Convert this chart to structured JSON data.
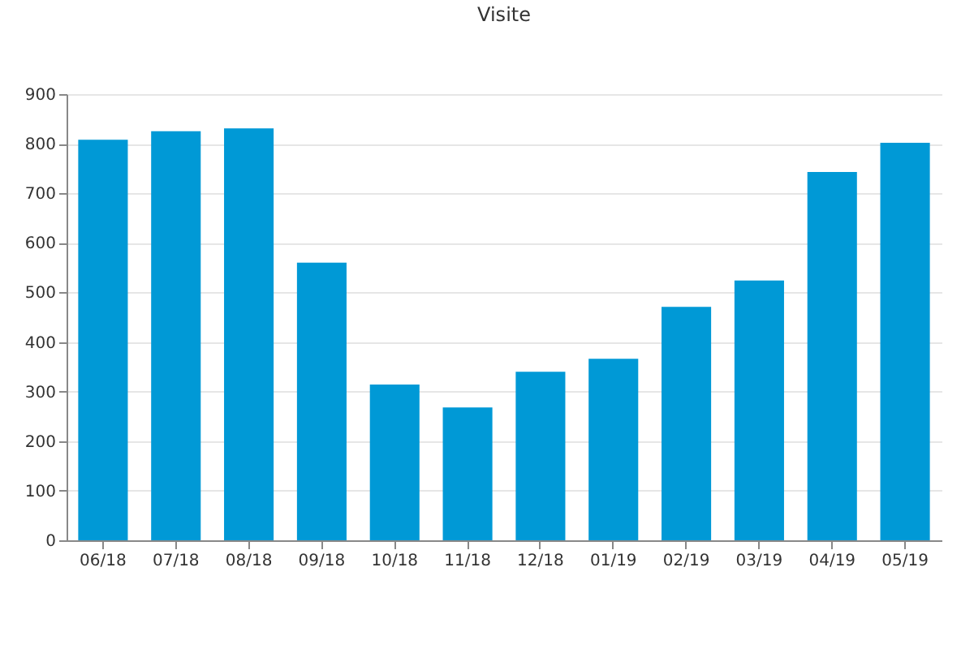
{
  "chart_data": {
    "type": "bar",
    "title": "Visite",
    "categories": [
      "06/18",
      "07/18",
      "08/18",
      "09/18",
      "10/18",
      "11/18",
      "12/18",
      "01/19",
      "02/19",
      "03/19",
      "04/19",
      "05/19"
    ],
    "values": [
      808,
      825,
      831,
      560,
      314,
      268,
      340,
      366,
      471,
      524,
      743,
      802
    ],
    "color": "#0099d6",
    "ylim": [
      0,
      900
    ],
    "yticks": [
      0,
      100,
      200,
      300,
      400,
      500,
      600,
      700,
      800,
      900
    ],
    "grid": "y"
  }
}
